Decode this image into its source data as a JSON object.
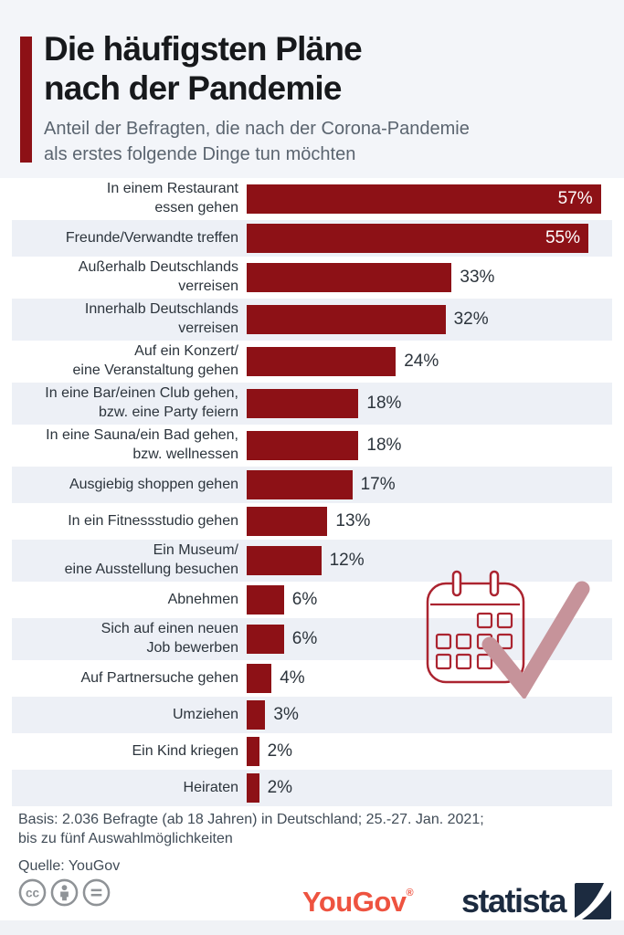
{
  "header": {
    "title_lines": [
      "Die häufigsten Pläne",
      "nach der Pandemie"
    ],
    "subtitle_lines": [
      "Anteil der Befragten, die nach der Corona-Pandemie",
      "als erstes folgende Dinge tun möchten"
    ]
  },
  "chart_data": {
    "type": "bar",
    "orientation": "horizontal",
    "unit": "%",
    "value_range": [
      0,
      57
    ],
    "axis_shown": false,
    "grid": false,
    "legend": false,
    "categories": [
      "In einem Restaurant essen gehen",
      "Freunde/Verwandte treffen",
      "Außerhalb Deutschlands verreisen",
      "Innerhalb Deutschlands verreisen",
      "Auf ein Konzert/eine Veranstaltung gehen",
      "In eine Bar/einen Club gehen, bzw. eine Party feiern",
      "In eine Sauna/ein Bad gehen, bzw. wellnessen",
      "Ausgiebig shoppen gehen",
      "In ein Fitnessstudio gehen",
      "Ein Museum/eine Ausstellung besuchen",
      "Abnehmen",
      "Sich auf einen neuen Job bewerben",
      "Auf Partnersuche gehen",
      "Umziehen",
      "Ein Kind kriegen",
      "Heiraten"
    ],
    "values": [
      57,
      55,
      33,
      32,
      24,
      18,
      18,
      17,
      13,
      12,
      6,
      6,
      4,
      3,
      2,
      2
    ],
    "rows": [
      {
        "label_lines": [
          "In einem Restaurant",
          "essen gehen"
        ],
        "value": 57,
        "value_label": "57%",
        "value_inside": true
      },
      {
        "label_lines": [
          "Freunde/Verwandte treffen"
        ],
        "value": 55,
        "value_label": "55%",
        "value_inside": true
      },
      {
        "label_lines": [
          "Außerhalb Deutschlands",
          "verreisen"
        ],
        "value": 33,
        "value_label": "33%",
        "value_inside": false
      },
      {
        "label_lines": [
          "Innerhalb Deutschlands",
          "verreisen"
        ],
        "value": 32,
        "value_label": "32%",
        "value_inside": false
      },
      {
        "label_lines": [
          "Auf ein Konzert/",
          "eine Veranstaltung gehen"
        ],
        "value": 24,
        "value_label": "24%",
        "value_inside": false
      },
      {
        "label_lines": [
          "In eine Bar/einen Club gehen,",
          "bzw. eine Party feiern"
        ],
        "value": 18,
        "value_label": "18%",
        "value_inside": false
      },
      {
        "label_lines": [
          "In eine Sauna/ein Bad gehen,",
          "bzw. wellnessen"
        ],
        "value": 18,
        "value_label": "18%",
        "value_inside": false
      },
      {
        "label_lines": [
          "Ausgiebig shoppen gehen"
        ],
        "value": 17,
        "value_label": "17%",
        "value_inside": false
      },
      {
        "label_lines": [
          "In ein Fitnessstudio gehen"
        ],
        "value": 13,
        "value_label": "13%",
        "value_inside": false
      },
      {
        "label_lines": [
          "Ein Museum/",
          "eine Ausstellung besuchen"
        ],
        "value": 12,
        "value_label": "12%",
        "value_inside": false
      },
      {
        "label_lines": [
          "Abnehmen"
        ],
        "value": 6,
        "value_label": "6%",
        "value_inside": false
      },
      {
        "label_lines": [
          "Sich auf einen neuen",
          "Job bewerben"
        ],
        "value": 6,
        "value_label": "6%",
        "value_inside": false
      },
      {
        "label_lines": [
          "Auf Partnersuche gehen"
        ],
        "value": 4,
        "value_label": "4%",
        "value_inside": false
      },
      {
        "label_lines": [
          "Umziehen"
        ],
        "value": 3,
        "value_label": "3%",
        "value_inside": false
      },
      {
        "label_lines": [
          "Ein Kind kriegen"
        ],
        "value": 2,
        "value_label": "2%",
        "value_inside": false
      },
      {
        "label_lines": [
          "Heiraten"
        ],
        "value": 2,
        "value_label": "2%",
        "value_inside": false
      }
    ]
  },
  "illustration": {
    "name": "calendar-with-checkmark",
    "outline_color": "#ab2430",
    "check_color": "#c6939a"
  },
  "footer": {
    "basis_lines": [
      "Basis: 2.036 Befragte (ab 18 Jahren) in Deutschland; 25.-27. Jan. 2021;",
      "bis zu fünf Auswahlmöglichkeiten"
    ],
    "source": "Quelle: YouGov",
    "license_icons": [
      {
        "name": "cc-icon",
        "glyph": "cc"
      },
      {
        "name": "attribution-person-icon",
        "glyph": ""
      },
      {
        "name": "no-derivatives-equals-icon",
        "glyph": ""
      }
    ]
  },
  "branding": {
    "yougov": "YouGov",
    "registered_mark": "®",
    "statista": "statista"
  },
  "colors": {
    "header_bg": "#f3f5f9",
    "alt_row_bg": "#edf0f6",
    "bar": "#8d1116",
    "accent_bar": "#8d1116",
    "title": "#17191c",
    "subtitle": "#5b6570",
    "label": "#2c343c",
    "footer_text": "#414c57",
    "cc_gray": "#8f9397",
    "yougov_logo": "#ee5340",
    "statista_logo": "#1c2b40"
  }
}
